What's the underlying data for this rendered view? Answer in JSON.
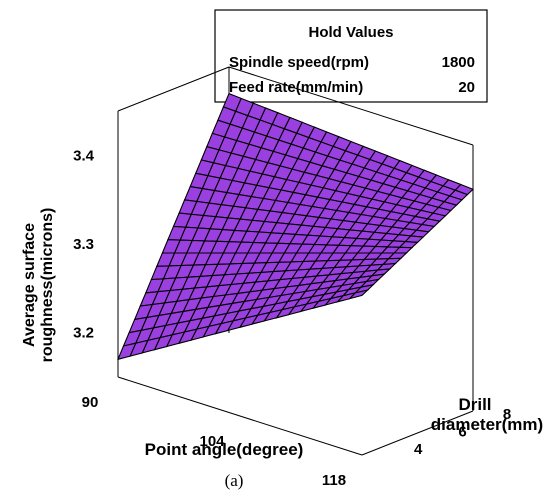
{
  "hold_values": {
    "title": "Hold Values",
    "rows": [
      {
        "name": "Spindle speed(rpm)",
        "value": "1800"
      },
      {
        "name": "Feed rate(mm/min)",
        "value": "20"
      }
    ]
  },
  "caption": "(a)",
  "chart_data": {
    "type": "surface",
    "title": "",
    "zlabel": [
      "Average surface",
      "roughness(microns)"
    ],
    "xlabel": "Point angle(degree)",
    "ylabel": [
      "Drill",
      "diameter(mm)"
    ],
    "x_ticks": [
      90,
      104,
      118
    ],
    "y_ticks": [
      4,
      6,
      8
    ],
    "z_ticks": [
      "3.2",
      "3.3",
      "3.4"
    ],
    "xlim": [
      90,
      118
    ],
    "ylim": [
      3,
      8
    ],
    "zlim": [
      3.15,
      3.45
    ],
    "grid_divisions": 20,
    "corners": {
      "x90_y3": 3.17,
      "x118_y3": 3.33,
      "x90_y8": 3.42,
      "x118_y8": 3.4
    },
    "surface_color": "#9b40e0",
    "mesh_color": "#000000"
  }
}
